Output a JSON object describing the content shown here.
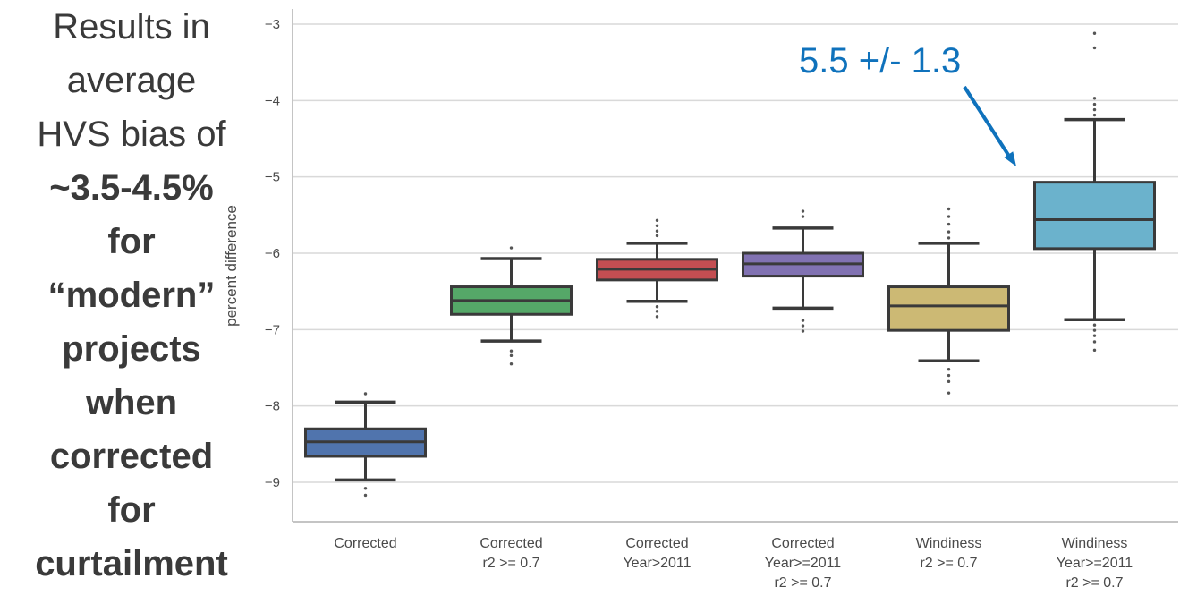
{
  "left_note": {
    "lines": [
      {
        "text": "Results in",
        "bold": false
      },
      {
        "text": "average",
        "bold": false
      },
      {
        "text": "HVS bias of",
        "bold": false
      },
      {
        "text": "~3.5-4.5%",
        "bold": true
      },
      {
        "text": "for",
        "bold": true
      },
      {
        "text": "“modern”",
        "bold": true
      },
      {
        "text": "projects",
        "bold": true
      },
      {
        "text": "when",
        "bold": true
      },
      {
        "text": "corrected",
        "bold": true
      },
      {
        "text": "for",
        "bold": true
      },
      {
        "text": "curtailment",
        "bold": true
      }
    ]
  },
  "annotation": {
    "text": "5.5 +/- 1.3",
    "color": "#0f72bc"
  },
  "colors": {
    "grid": "#d9d9d9",
    "spine": "#c4c4c4",
    "box_edge": "#3a3a3a",
    "tick_label": "#4a4a4a",
    "note_text": "#3a3a3a"
  },
  "chart_data": {
    "type": "box",
    "title": "",
    "xlabel": "",
    "ylabel": "percent difference",
    "ylim": [
      -9.5,
      -2.8
    ],
    "grid": true,
    "yticks": [
      -3,
      -4,
      -5,
      -6,
      -7,
      -8,
      -9
    ],
    "ytick_labels": [
      "−3",
      "−4",
      "−5",
      "−6",
      "−7",
      "−8",
      "−9"
    ],
    "categories": [
      "Corrected",
      "Corrected r2 >= 0.7",
      "Corrected Year>2011",
      "Corrected Year>=2011 r2 >= 0.7",
      "Windiness r2 >= 0.7",
      "Windiness Year>=2011 r2 >= 0.7"
    ],
    "category_label_lines": [
      [
        "Corrected"
      ],
      [
        "Corrected",
        "r2 >= 0.7"
      ],
      [
        "Corrected",
        "Year>2011"
      ],
      [
        "Corrected",
        "Year>=2011",
        "r2 >= 0.7"
      ],
      [
        "Windiness",
        "r2 >= 0.7"
      ],
      [
        "Windiness",
        "Year>=2011",
        "r2 >= 0.7"
      ]
    ],
    "series": [
      {
        "name": "Corrected",
        "color": "#5074ad",
        "whislo": -8.97,
        "q1": -8.66,
        "med": -8.47,
        "q3": -8.3,
        "whishi": -7.95,
        "fliers": [
          -7.84,
          -9.08,
          -9.17
        ]
      },
      {
        "name": "Corrected r2 >= 0.7",
        "color": "#55a868",
        "whislo": -7.15,
        "q1": -6.8,
        "med": -6.62,
        "q3": -6.44,
        "whishi": -6.07,
        "fliers": [
          -5.93,
          -7.28,
          -7.34,
          -7.45
        ]
      },
      {
        "name": "Corrected Year>2011",
        "color": "#c44e52",
        "whislo": -6.63,
        "q1": -6.35,
        "med": -6.21,
        "q3": -6.08,
        "whishi": -5.87,
        "fliers": [
          -5.57,
          -5.64,
          -5.71,
          -5.77,
          -6.7,
          -6.76,
          -6.83
        ]
      },
      {
        "name": "Corrected Year>=2011 r2 >= 0.7",
        "color": "#8172b2",
        "whislo": -6.72,
        "q1": -6.3,
        "med": -6.14,
        "q3": -6.0,
        "whishi": -5.67,
        "fliers": [
          -5.45,
          -5.52,
          -6.88,
          -6.95,
          -7.02
        ]
      },
      {
        "name": "Windiness r2 >= 0.7",
        "color": "#ccb974",
        "whislo": -7.41,
        "q1": -7.01,
        "med": -6.69,
        "q3": -6.44,
        "whishi": -5.87,
        "fliers": [
          -5.42,
          -5.52,
          -5.62,
          -5.72,
          -5.8,
          -7.52,
          -7.6,
          -7.68,
          -7.83
        ]
      },
      {
        "name": "Windiness Year>=2011 r2 >= 0.7",
        "color": "#6bb2cc",
        "whislo": -6.87,
        "q1": -5.94,
        "med": -5.56,
        "q3": -5.07,
        "whishi": -4.25,
        "fliers": [
          -3.12,
          -3.31,
          -3.97,
          -4.05,
          -4.12,
          -4.19,
          -6.94,
          -7.01,
          -7.08,
          -7.16,
          -7.27
        ]
      }
    ]
  }
}
